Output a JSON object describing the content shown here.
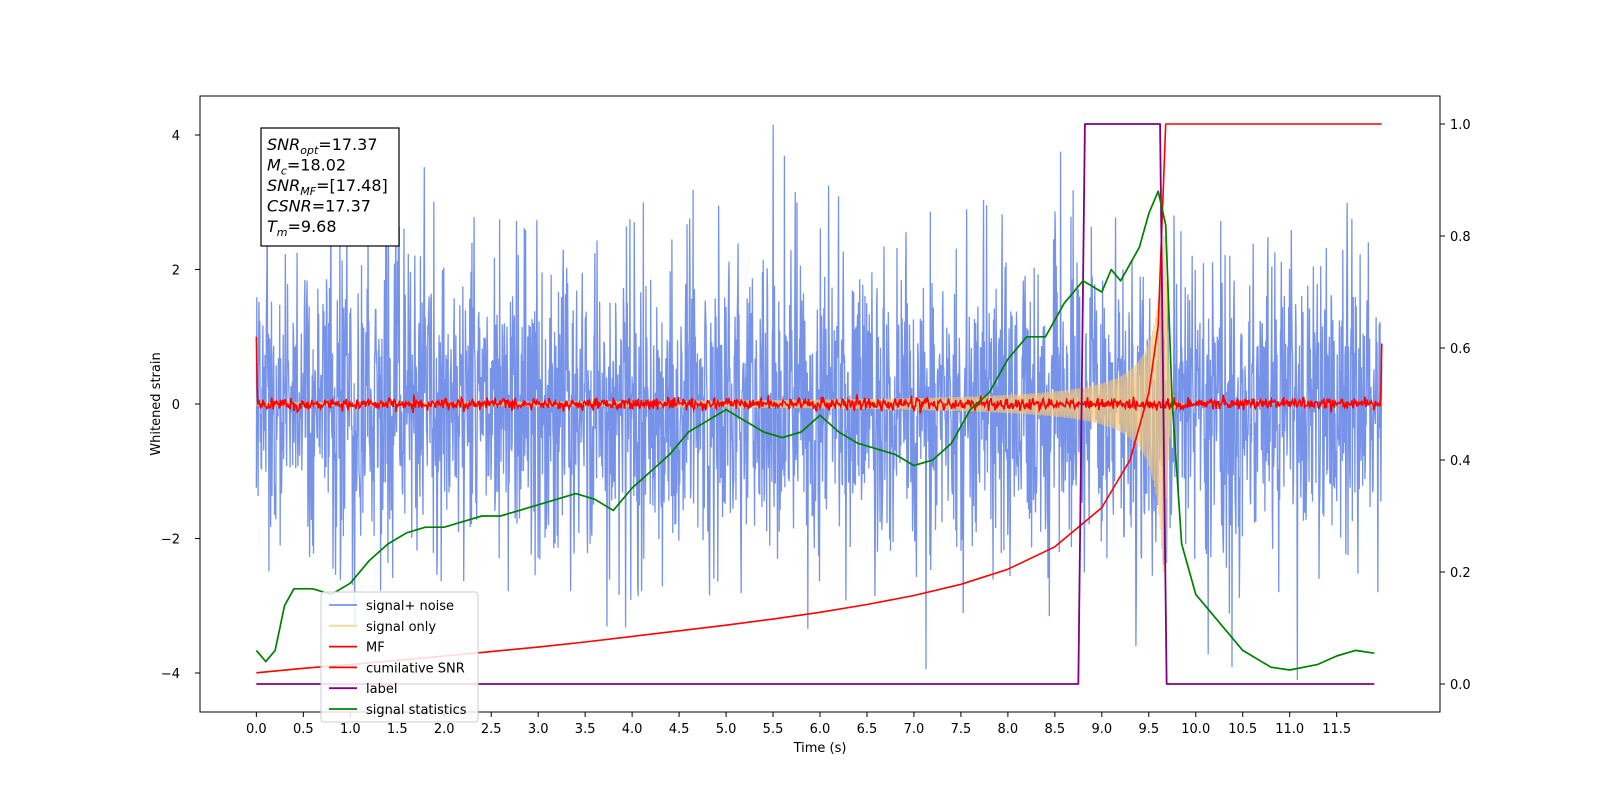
{
  "chart_data": {
    "type": "line",
    "xlabel": "Time (s)",
    "ylabel": "Whitened strain",
    "xlim": [
      -0.6,
      12.6
    ],
    "ylim": [
      -4.58,
      4.58
    ],
    "y2lim": [
      -0.05,
      1.05
    ],
    "x_ticks": [
      0.0,
      0.5,
      1.0,
      1.5,
      2.0,
      2.5,
      3.0,
      3.5,
      4.0,
      4.5,
      5.0,
      5.5,
      6.0,
      6.5,
      7.0,
      7.5,
      8.0,
      8.5,
      9.0,
      9.5,
      10.0,
      10.5,
      11.0,
      11.5
    ],
    "x_tick_labels": [
      "0.0",
      "0.5",
      "1.0",
      "1.5",
      "2.0",
      "2.5",
      "3.0",
      "3.5",
      "4.0",
      "4.5",
      "5.0",
      "5.5",
      "6.0",
      "6.5",
      "7.0",
      "7.5",
      "8.0",
      "8.5",
      "9.0",
      "9.5",
      "10.0",
      "10.5",
      "11.0",
      "11.5"
    ],
    "y_ticks": [
      -4,
      -2,
      0,
      2,
      4
    ],
    "y_tick_labels": [
      "−4",
      "−2",
      "0",
      "2",
      "4"
    ],
    "y2_ticks": [
      0.0,
      0.2,
      0.4,
      0.6,
      0.8,
      1.0
    ],
    "y2_tick_labels": [
      "0.0",
      "0.2",
      "0.4",
      "0.6",
      "0.8",
      "1.0"
    ],
    "grid": false,
    "legend_position": "lower-left",
    "annotation": {
      "lines": [
        {
          "base": "SNR",
          "sub": "opt",
          "rest": "=17.37"
        },
        {
          "base": "M",
          "sub": "c",
          "rest": "=18.02"
        },
        {
          "base": "SNR",
          "sub": "MF",
          "rest": "=[17.48]"
        },
        {
          "base": "CSNR",
          "sub": "",
          "rest": "=17.37"
        },
        {
          "base": "T",
          "sub": "m",
          "rest": "=9.68"
        }
      ]
    },
    "series": [
      {
        "name": "signal+ noise",
        "color": "#4169e1",
        "axis": "left",
        "kind": "noise",
        "t_range": [
          0,
          11.98
        ],
        "amplitude_max": 4.15,
        "amplitude_min": -4.15
      },
      {
        "name": "signal only",
        "color": "#f4c77a",
        "axis": "left",
        "kind": "chirp",
        "t_range": [
          0,
          11.98
        ],
        "merger_time": 9.68,
        "peak_amplitude": 2.5
      },
      {
        "name": "MF",
        "color": "#ff0000",
        "axis": "left",
        "kind": "matched-filter",
        "t_range": [
          0,
          11.98
        ],
        "baseline": 0.0,
        "edge_values": [
          1.0,
          0.9
        ]
      },
      {
        "name": "cumilative SNR",
        "color": "#ff0000",
        "axis": "right",
        "points": [
          [
            0.0,
            0.02
          ],
          [
            0.5,
            0.028
          ],
          [
            1.0,
            0.035
          ],
          [
            1.5,
            0.042
          ],
          [
            2.0,
            0.05
          ],
          [
            2.5,
            0.058
          ],
          [
            3.0,
            0.066
          ],
          [
            3.5,
            0.075
          ],
          [
            4.0,
            0.085
          ],
          [
            4.5,
            0.095
          ],
          [
            5.0,
            0.105
          ],
          [
            5.5,
            0.116
          ],
          [
            6.0,
            0.128
          ],
          [
            6.5,
            0.142
          ],
          [
            7.0,
            0.158
          ],
          [
            7.5,
            0.178
          ],
          [
            8.0,
            0.205
          ],
          [
            8.5,
            0.245
          ],
          [
            9.0,
            0.315
          ],
          [
            9.3,
            0.4
          ],
          [
            9.5,
            0.52
          ],
          [
            9.6,
            0.64
          ],
          [
            9.68,
            1.0
          ],
          [
            11.98,
            1.0
          ]
        ]
      },
      {
        "name": "label",
        "color": "#800080",
        "axis": "right",
        "points": [
          [
            0.0,
            0.0
          ],
          [
            8.75,
            0.0
          ],
          [
            8.82,
            1.0
          ],
          [
            9.62,
            1.0
          ],
          [
            9.69,
            0.0
          ],
          [
            11.9,
            0.0
          ]
        ]
      },
      {
        "name": "signal statistics",
        "color": "#008000",
        "axis": "right",
        "points": [
          [
            0.0,
            0.06
          ],
          [
            0.1,
            0.04
          ],
          [
            0.2,
            0.06
          ],
          [
            0.3,
            0.14
          ],
          [
            0.4,
            0.17
          ],
          [
            0.6,
            0.17
          ],
          [
            0.8,
            0.16
          ],
          [
            1.0,
            0.18
          ],
          [
            1.2,
            0.22
          ],
          [
            1.4,
            0.25
          ],
          [
            1.6,
            0.27
          ],
          [
            1.8,
            0.28
          ],
          [
            2.0,
            0.28
          ],
          [
            2.2,
            0.29
          ],
          [
            2.4,
            0.3
          ],
          [
            2.6,
            0.3
          ],
          [
            2.8,
            0.31
          ],
          [
            3.0,
            0.32
          ],
          [
            3.2,
            0.33
          ],
          [
            3.4,
            0.34
          ],
          [
            3.6,
            0.33
          ],
          [
            3.8,
            0.31
          ],
          [
            4.0,
            0.35
          ],
          [
            4.2,
            0.38
          ],
          [
            4.4,
            0.41
          ],
          [
            4.6,
            0.45
          ],
          [
            4.8,
            0.47
          ],
          [
            5.0,
            0.49
          ],
          [
            5.2,
            0.47
          ],
          [
            5.4,
            0.45
          ],
          [
            5.6,
            0.44
          ],
          [
            5.8,
            0.45
          ],
          [
            6.0,
            0.48
          ],
          [
            6.2,
            0.45
          ],
          [
            6.4,
            0.43
          ],
          [
            6.6,
            0.42
          ],
          [
            6.8,
            0.41
          ],
          [
            7.0,
            0.39
          ],
          [
            7.2,
            0.4
          ],
          [
            7.4,
            0.43
          ],
          [
            7.6,
            0.49
          ],
          [
            7.8,
            0.52
          ],
          [
            8.0,
            0.58
          ],
          [
            8.2,
            0.62
          ],
          [
            8.4,
            0.62
          ],
          [
            8.6,
            0.68
          ],
          [
            8.8,
            0.72
          ],
          [
            9.0,
            0.7
          ],
          [
            9.1,
            0.74
          ],
          [
            9.2,
            0.72
          ],
          [
            9.4,
            0.78
          ],
          [
            9.5,
            0.84
          ],
          [
            9.6,
            0.88
          ],
          [
            9.68,
            0.82
          ],
          [
            9.75,
            0.5
          ],
          [
            9.85,
            0.25
          ],
          [
            10.0,
            0.16
          ],
          [
            10.2,
            0.12
          ],
          [
            10.5,
            0.06
          ],
          [
            10.8,
            0.03
          ],
          [
            11.0,
            0.025
          ],
          [
            11.3,
            0.035
          ],
          [
            11.5,
            0.05
          ],
          [
            11.7,
            0.06
          ],
          [
            11.9,
            0.055
          ]
        ]
      }
    ]
  }
}
